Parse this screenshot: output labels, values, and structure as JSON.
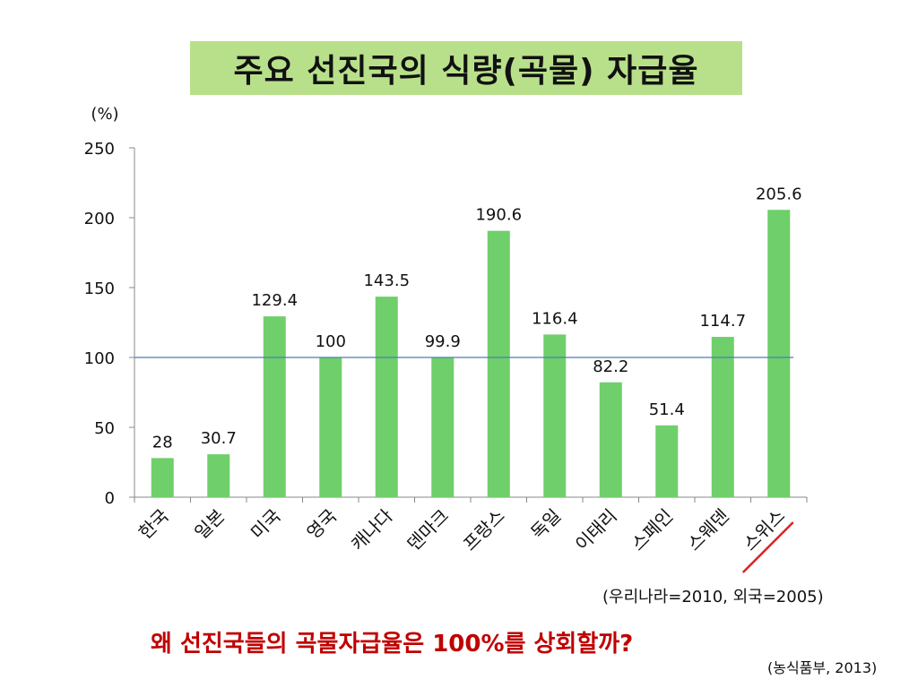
{
  "title": "주요 선진국의 식량(곡물) 자급율",
  "notes": {
    "year_note": "(우리나라=2010, 외국=2005)",
    "question": "왜 선진국들의 곡물자급율은 100%를 상회할까?",
    "source": "(농식품부, 2013)"
  },
  "colors": {
    "bar": "#6fcf6a",
    "reference_line": "#4a7ebb",
    "title_bg": "#b8e08a",
    "question_text": "#c00000",
    "underline": "#e02020"
  },
  "chart_data": {
    "type": "bar",
    "title": "주요 선진국의 식량(곡물) 자급율",
    "ylabel": "(%)",
    "xlabel": "",
    "ylim": [
      0,
      250
    ],
    "yticks": [
      "0",
      "50",
      "100",
      "150",
      "200",
      "250"
    ],
    "reference_line": 100,
    "grid": false,
    "categories": [
      "한국",
      "일본",
      "미국",
      "영국",
      "캐나다",
      "덴마크",
      "프랑스",
      "독일",
      "이태리",
      "스페인",
      "스웨덴",
      "스위스"
    ],
    "values": [
      28,
      30.7,
      129.4,
      100,
      143.5,
      99.9,
      190.6,
      116.4,
      82.2,
      51.4,
      114.7,
      205.6
    ],
    "value_labels": [
      "28",
      "30.7",
      "129.4",
      "100",
      "143.5",
      "99.9",
      "190.6",
      "116.4",
      "82.2",
      "51.4",
      "114.7",
      "205.6"
    ],
    "underlined_category": "스위스"
  }
}
